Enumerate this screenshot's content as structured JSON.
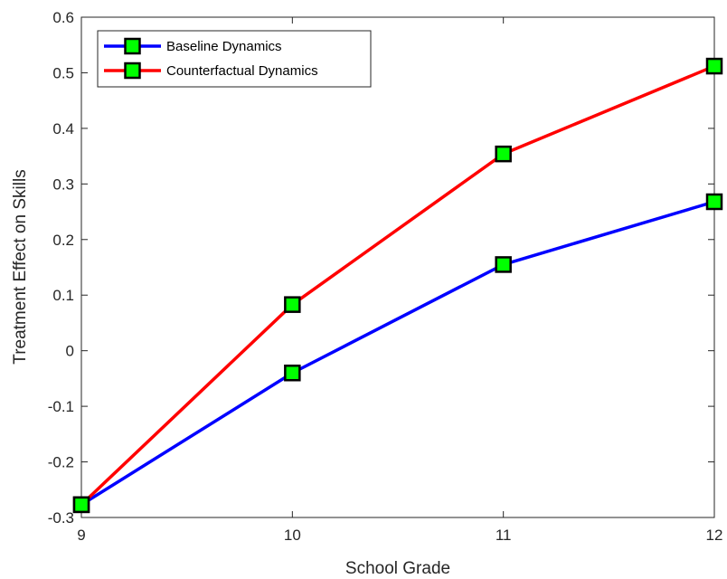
{
  "chart_data": {
    "type": "line",
    "xlabel": "School Grade",
    "ylabel": "Treatment Effect on Skills",
    "xlim": [
      9,
      12
    ],
    "ylim": [
      -0.3,
      0.6
    ],
    "xticks": [
      9,
      10,
      11,
      12
    ],
    "yticks": [
      -0.3,
      -0.2,
      -0.1,
      0,
      0.1,
      0.2,
      0.3,
      0.4,
      0.5,
      0.6
    ],
    "ytick_labels": [
      "-0.3",
      "-0.2",
      "-0.1",
      "0",
      "0.1",
      "0.2",
      "0.3",
      "0.4",
      "0.5",
      "0.6"
    ],
    "x": [
      9,
      10,
      11,
      12
    ],
    "grid": false,
    "legend_position": "top-left",
    "marker": "square",
    "marker_color": "#00ff00",
    "series": [
      {
        "name": "Baseline Dynamics",
        "color": "#0000ff",
        "values": [
          -0.277,
          -0.04,
          0.155,
          0.268
        ]
      },
      {
        "name": "Counterfactual Dynamics",
        "color": "#ff0000",
        "values": [
          -0.277,
          0.083,
          0.354,
          0.512
        ]
      }
    ]
  }
}
